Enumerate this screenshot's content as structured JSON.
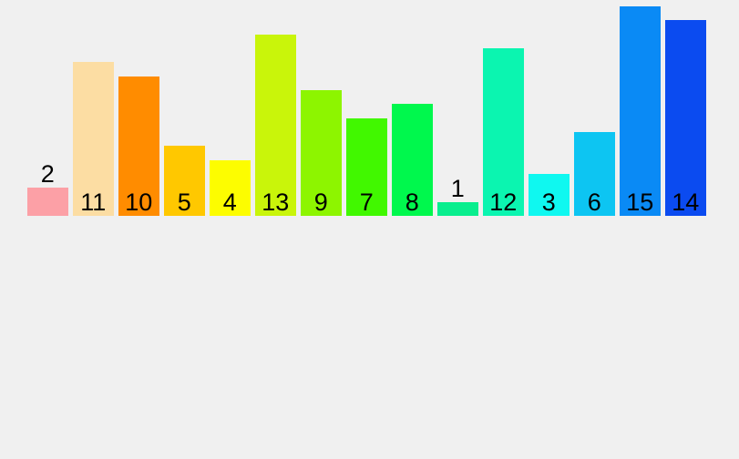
{
  "page": {
    "background": "#f0f0f0"
  },
  "chart_data": {
    "type": "bar",
    "title": "",
    "xlabel": "",
    "ylabel": "",
    "ylim": [
      0,
      15
    ],
    "grid": false,
    "axes_visible": false,
    "legend_position": "none",
    "label_color": "#000000",
    "values": [
      2,
      11,
      10,
      5,
      4,
      13,
      9,
      7,
      8,
      1,
      12,
      3,
      6,
      15,
      14
    ],
    "bars": [
      {
        "value": 2,
        "label": "2",
        "color": "#fca0a6",
        "label_position": "above"
      },
      {
        "value": 11,
        "label": "11",
        "color": "#fcdda3",
        "label_position": "inside"
      },
      {
        "value": 10,
        "label": "10",
        "color": "#ff8c00",
        "label_position": "inside"
      },
      {
        "value": 5,
        "label": "5",
        "color": "#ffc800",
        "label_position": "inside"
      },
      {
        "value": 4,
        "label": "4",
        "color": "#fdfd00",
        "label_position": "inside"
      },
      {
        "value": 13,
        "label": "13",
        "color": "#c9f50a",
        "label_position": "inside"
      },
      {
        "value": 9,
        "label": "9",
        "color": "#8df500",
        "label_position": "inside"
      },
      {
        "value": 7,
        "label": "7",
        "color": "#41f800",
        "label_position": "inside"
      },
      {
        "value": 8,
        "label": "8",
        "color": "#00f84d",
        "label_position": "inside"
      },
      {
        "value": 1,
        "label": "1",
        "color": "#09ee8e",
        "label_position": "above"
      },
      {
        "value": 12,
        "label": "12",
        "color": "#0bf5b0",
        "label_position": "inside"
      },
      {
        "value": 3,
        "label": "3",
        "color": "#0ff8f0",
        "label_position": "inside"
      },
      {
        "value": 6,
        "label": "6",
        "color": "#0dc5f2",
        "label_position": "inside"
      },
      {
        "value": 15,
        "label": "15",
        "color": "#0a8af5",
        "label_position": "inside"
      },
      {
        "value": 14,
        "label": "14",
        "color": "#0b4bf0",
        "label_position": "inside"
      }
    ]
  }
}
